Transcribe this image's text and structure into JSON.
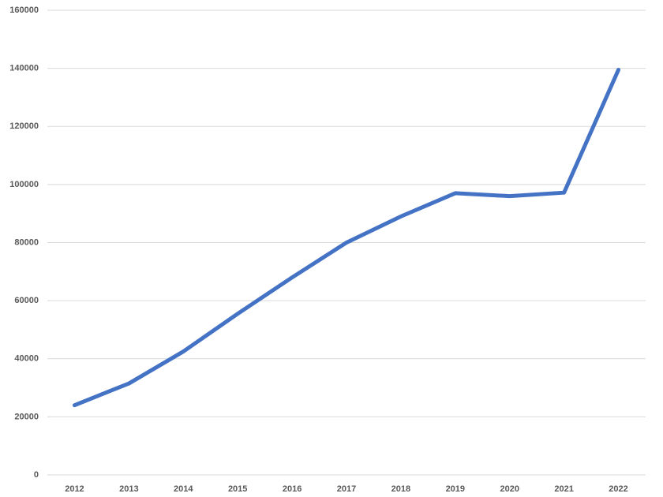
{
  "chart_data": {
    "type": "line",
    "categories": [
      "2012",
      "2013",
      "2014",
      "2015",
      "2016",
      "2017",
      "2018",
      "2019",
      "2020",
      "2021",
      "2022"
    ],
    "series": [
      {
        "color": "#4472c4",
        "values": [
          24000,
          31500,
          42500,
          55500,
          68000,
          80000,
          89000,
          97000,
          96000,
          97200,
          139500
        ]
      }
    ],
    "ylim": [
      0,
      160000
    ],
    "yticks": [
      0,
      20000,
      40000,
      60000,
      80000,
      100000,
      120000,
      140000,
      160000
    ],
    "grid": true
  }
}
